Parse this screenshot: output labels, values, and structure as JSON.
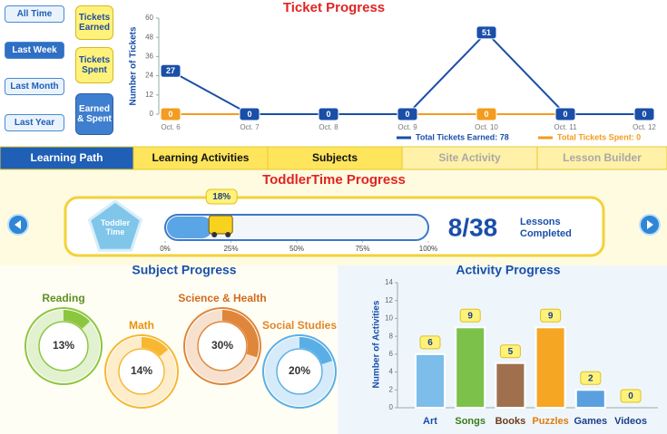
{
  "time_filters": [
    {
      "label": "All Time",
      "selected": false
    },
    {
      "label": "Last Week",
      "selected": true
    },
    {
      "label": "Last Month",
      "selected": false
    },
    {
      "label": "Last Year",
      "selected": false
    }
  ],
  "ticket_filters": [
    {
      "label": "Tickets Earned",
      "selected": false
    },
    {
      "label": "Tickets Spent",
      "selected": false
    },
    {
      "label": "Earned & Spent",
      "selected": true
    }
  ],
  "tabs": [
    {
      "label": "Learning Path",
      "state": "active"
    },
    {
      "label": "Learning Activities",
      "state": "normal"
    },
    {
      "label": "Subjects",
      "state": "normal"
    },
    {
      "label": "Site Activity",
      "state": "disabled"
    },
    {
      "label": "Lesson Builder",
      "state": "disabled"
    }
  ],
  "chart_data": [
    {
      "type": "line",
      "title": "Ticket Progress",
      "y_label": "Number of Tickets",
      "categories": [
        "Oct. 6",
        "Oct. 7",
        "Oct. 8",
        "Oct. 9",
        "Oct. 10",
        "Oct. 11",
        "Oct. 12"
      ],
      "series": [
        {
          "name": "Total Tickets Earned: 78",
          "color": "#1a4fa8",
          "values": [
            27,
            0,
            0,
            0,
            51,
            0,
            0
          ]
        },
        {
          "name": "Total Tickets Spent: 0",
          "color": "#f39c1f",
          "values": [
            0,
            0,
            0,
            0,
            0,
            0,
            0
          ]
        }
      ],
      "ylim": [
        0,
        60
      ],
      "yticks": [
        0,
        12,
        24,
        36,
        48,
        60
      ],
      "grid": false
    },
    {
      "type": "progress",
      "title": "ToddlerTime Progress",
      "badge": "Toddler Time",
      "value": 18,
      "value_label": "18%",
      "xlim": [
        0,
        100
      ],
      "xticks": [
        {
          "value": 0,
          "label": "0%"
        },
        {
          "value": 25,
          "label": "25%"
        },
        {
          "value": 50,
          "label": "50%"
        },
        {
          "value": 75,
          "label": "75%"
        },
        {
          "value": 100,
          "label": "100%"
        }
      ],
      "count": "8/38",
      "count_label": "Lessons Completed",
      "color": "#5aa5e6"
    },
    {
      "type": "donut",
      "title": "Subject Progress",
      "categories": [
        "Reading",
        "Math",
        "Science & Health",
        "Social Studies"
      ],
      "values": [
        13,
        14,
        30,
        20
      ],
      "value_labels": [
        "13%",
        "14%",
        "30%",
        "20%"
      ],
      "colors": [
        "#8cc63f",
        "#f7b731",
        "#e0863a",
        "#5aaee6"
      ],
      "label_colors": [
        "#5f8f22",
        "#e8920c",
        "#d2691e",
        "#e0862c"
      ]
    },
    {
      "type": "bar",
      "title": "Activity Progress",
      "y_label": "Number of Activities",
      "categories": [
        "Art",
        "Songs",
        "Books",
        "Puzzles",
        "Games",
        "Videos"
      ],
      "values": [
        6,
        9,
        5,
        9,
        2,
        0
      ],
      "colors": [
        "#7cbdea",
        "#7cc24a",
        "#a0704e",
        "#f5a623",
        "#5aa0e0",
        "#5aa0e0"
      ],
      "label_colors": [
        "#1a4fa8",
        "#3a7a1a",
        "#6b3a1a",
        "#e07a10",
        "#1a3f8a",
        "#1a3f8a"
      ],
      "ylim": [
        0,
        14
      ],
      "yticks": [
        0,
        2,
        4,
        6,
        8,
        10,
        12,
        14
      ],
      "grid": false
    }
  ]
}
